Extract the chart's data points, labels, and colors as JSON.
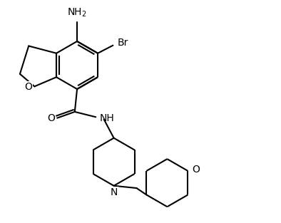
{
  "background_color": "#ffffff",
  "line_color": "#000000",
  "line_width": 1.5,
  "font_size": 9,
  "figsize": [
    3.94,
    3.13
  ],
  "dpi": 100,
  "xlim": [
    0,
    9.45
  ],
  "ylim": [
    0,
    7.52
  ]
}
